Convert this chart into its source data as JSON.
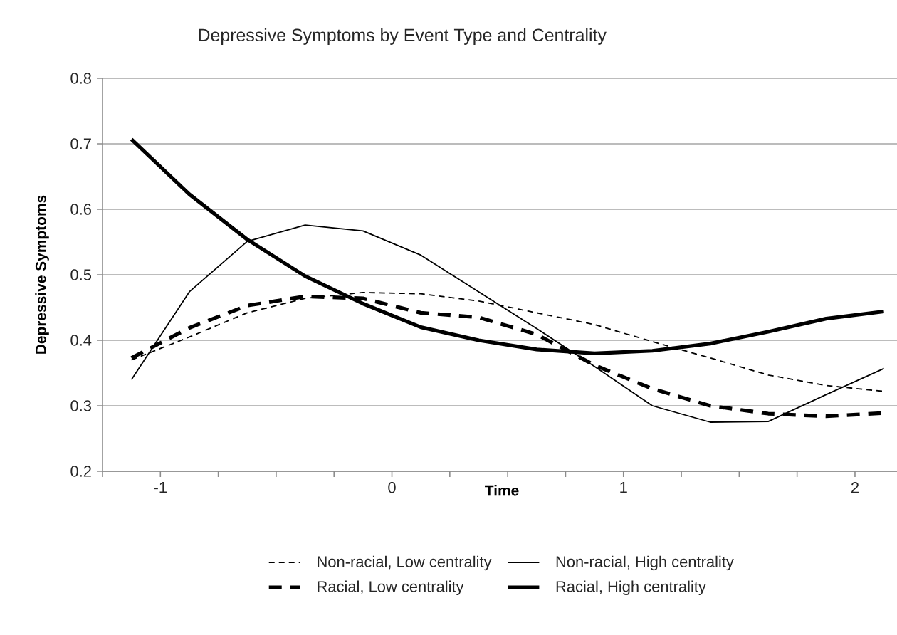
{
  "chart_data": {
    "type": "line",
    "title": "Depressive Symptoms by Event Type and Centrality",
    "xlabel": "Time",
    "ylabel": "Depressive Symptoms",
    "x": [
      -1.125,
      -0.875,
      -0.625,
      -0.375,
      -0.125,
      0.125,
      0.375,
      0.625,
      0.875,
      1.125,
      1.375,
      1.625,
      1.875,
      2.125
    ],
    "series": [
      {
        "name": "Non-racial, Low centrality",
        "color": "#000000",
        "line_style": "dashed",
        "values": [
          0.37,
          0.405,
          0.442,
          0.464,
          0.473,
          0.471,
          0.46,
          0.442,
          0.424,
          0.398,
          0.373,
          0.347,
          0.331,
          0.322
        ]
      },
      {
        "name": "Non-racial, High centrality",
        "color": "#000000",
        "line_style": "solid",
        "values": [
          0.34,
          0.474,
          0.551,
          0.576,
          0.567,
          0.53,
          0.474,
          0.418,
          0.36,
          0.3,
          0.275,
          0.276,
          0.317,
          0.357
        ]
      },
      {
        "name": "Racial, Low centrality",
        "color": "#000000",
        "line_style": "dashed",
        "values": [
          0.373,
          0.419,
          0.453,
          0.467,
          0.464,
          0.442,
          0.435,
          0.409,
          0.362,
          0.326,
          0.3,
          0.288,
          0.284,
          0.289
        ]
      },
      {
        "name": "Racial, High centrality",
        "color": "#000000",
        "line_style": "solid",
        "values": [
          0.707,
          0.623,
          0.554,
          0.498,
          0.456,
          0.42,
          0.4,
          0.386,
          0.38,
          0.384,
          0.395,
          0.413,
          0.433,
          0.444
        ]
      }
    ],
    "xlim": [
      -1.25,
      2.2
    ],
    "xticks": [
      {
        "value": -1.25,
        "label": null
      },
      -1,
      {
        "value": -0.75,
        "label": null
      },
      {
        "value": -0.5,
        "label": null
      },
      {
        "value": -0.25,
        "label": null
      },
      0,
      {
        "value": 0.25,
        "label": null
      },
      {
        "value": 0.5,
        "label": null
      },
      {
        "value": 0.75,
        "label": null
      },
      1,
      {
        "value": 1.25,
        "label": null
      },
      {
        "value": 1.5,
        "label": null
      },
      {
        "value": 1.75,
        "label": null
      },
      2
    ],
    "ylim": [
      0.2,
      0.8
    ],
    "yticks": [
      0.2,
      0.3,
      0.4,
      0.5,
      0.6,
      0.7,
      0.8
    ],
    "grid": "y",
    "legend": "bottom",
    "marker": "none"
  }
}
